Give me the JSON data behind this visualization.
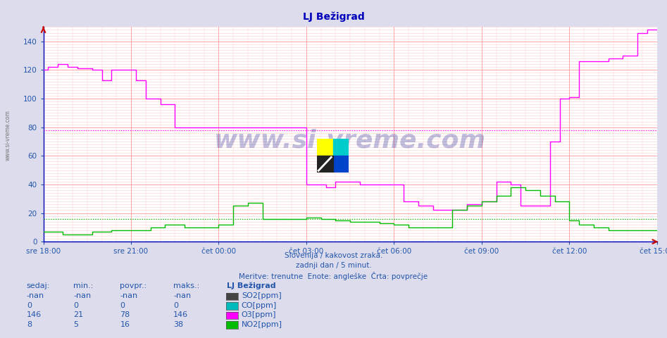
{
  "title": "LJ Bežigrad",
  "subtitle1": "Slovenija / kakovost zraka.",
  "subtitle2": "zadnji dan / 5 minut.",
  "subtitle3": "Meritve: trenutne  Enote: angleške  Črta: povprečje",
  "xlabels": [
    "sre 18:00",
    "sre 21:00",
    "čet 00:00",
    "čet 03:00",
    "čet 06:00",
    "čet 09:00",
    "čet 12:00",
    "čet 15:00"
  ],
  "xtick_positions": [
    0,
    36,
    72,
    108,
    144,
    180,
    216,
    252
  ],
  "ylim": [
    0,
    150
  ],
  "yticks": [
    0,
    20,
    40,
    60,
    80,
    100,
    120,
    140
  ],
  "bg_color": "#dcdcec",
  "plot_bg_color": "#ffffff",
  "grid_color_major": "#ff9999",
  "grid_color_minor": "#ffcccc",
  "o3_color": "#ff00ff",
  "no2_color": "#00bb00",
  "so2_color": "#333333",
  "co_color": "#00bbbb",
  "o3_hline": 78,
  "no2_hline": 16,
  "watermark": "www.si-vreme.com",
  "table_headers": [
    "sedaj:",
    "min.:",
    "povpr.:",
    "maks.:",
    "LJ Bežigrad"
  ],
  "table_data": [
    [
      "-nan",
      "-nan",
      "-nan",
      "-nan",
      "SO2[ppm]"
    ],
    [
      "0",
      "0",
      "0",
      "0",
      "CO[ppm]"
    ],
    [
      "146",
      "21",
      "78",
      "146",
      "O3[ppm]"
    ],
    [
      "8",
      "5",
      "16",
      "38",
      "NO2[ppm]"
    ]
  ],
  "so2_color_swatch": "#444444",
  "co_color_swatch": "#00bbbb",
  "o3_color_swatch": "#ff00ff",
  "no2_color_swatch": "#00bb00",
  "n_points": 253,
  "text_color": "#2255aa",
  "header_color": "#2255aa"
}
